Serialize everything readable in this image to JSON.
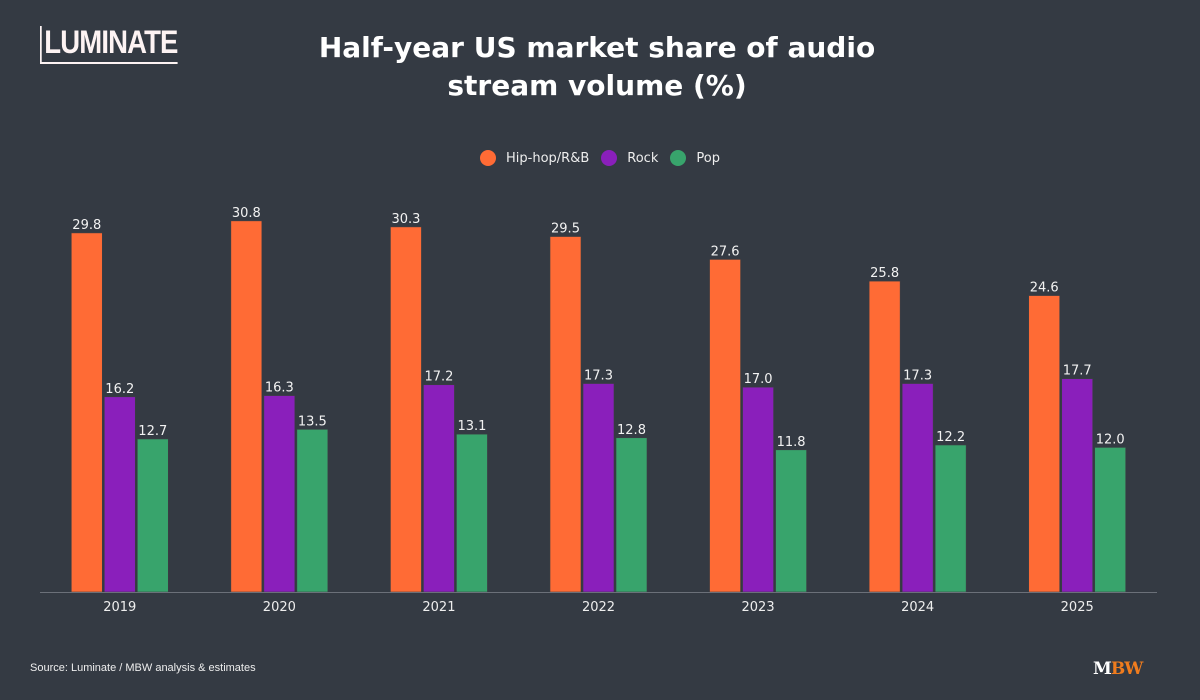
{
  "brand": {
    "logo_text": "LUMINATE",
    "footer_logo_m": "M",
    "footer_logo_bw": "BW"
  },
  "source": "Source: Luminate / MBW analysis & estimates",
  "chart_data": {
    "type": "bar",
    "title": "Half-year US market share of audio stream volume (%)",
    "title_lines": [
      "Half-year US market share of audio",
      "stream volume (%)"
    ],
    "xlabel": "",
    "ylabel": "",
    "categories": [
      "2019",
      "2020",
      "2021",
      "2022",
      "2023",
      "2024",
      "2025"
    ],
    "series": [
      {
        "name": "Hip-hop/R&B",
        "color": "#ff6b35",
        "values": [
          29.8,
          30.8,
          30.3,
          29.5,
          27.6,
          25.8,
          24.6
        ]
      },
      {
        "name": "Rock",
        "color": "#8a1fbb",
        "values": [
          16.2,
          16.3,
          17.2,
          17.3,
          17.0,
          17.3,
          17.7
        ]
      },
      {
        "name": "Pop",
        "color": "#38a46c",
        "values": [
          12.7,
          13.5,
          13.1,
          12.8,
          11.8,
          12.2,
          12.0
        ]
      }
    ],
    "ylim": [
      0,
      31
    ],
    "grid": false,
    "y_axis_visible": false,
    "data_labels": true,
    "legend_position": "top-center"
  }
}
